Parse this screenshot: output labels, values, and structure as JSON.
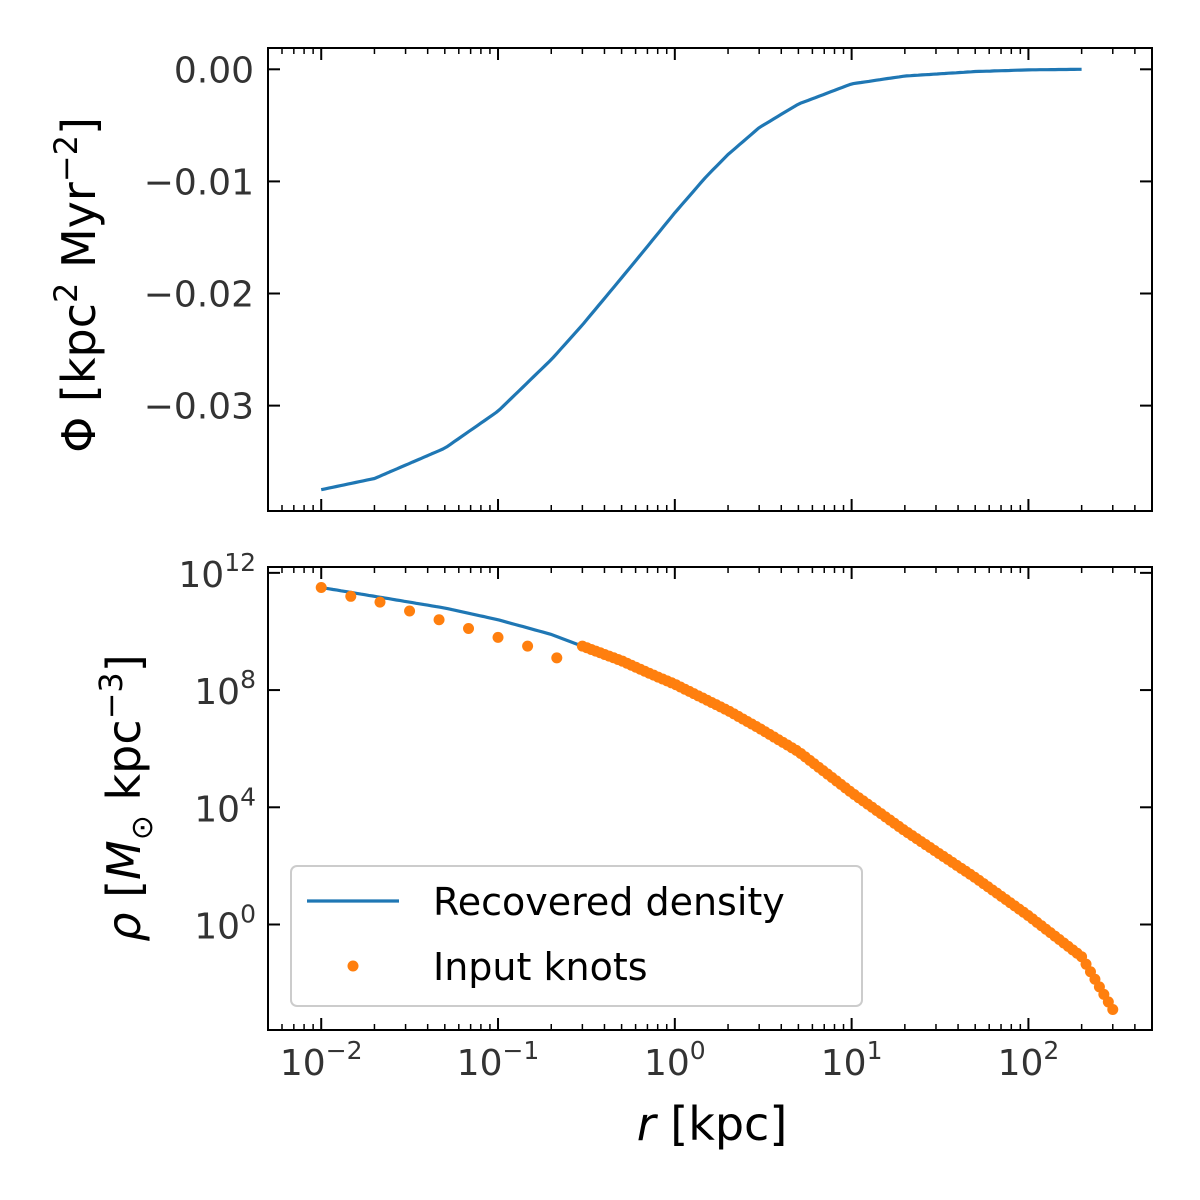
{
  "chart_data": [
    {
      "type": "line",
      "panel": "top",
      "ylabel": "Φ [kpc² Myr⁻²]",
      "ylabel_parts": {
        "sym": "Φ",
        "unit1": "kpc",
        "exp1": "2",
        "unit2": "Myr",
        "exp2": "−2"
      },
      "xscale": "log",
      "xlim": [
        0.005,
        500
      ],
      "ylim": [
        -0.0394,
        0.0019
      ],
      "yticks": [
        0.0,
        -0.01,
        -0.02,
        -0.03
      ],
      "ytick_labels": [
        "0.00",
        "−0.01",
        "−0.02",
        "−0.03"
      ],
      "series": [
        {
          "color": "#1f77b4",
          "x": [
            0.01,
            0.02,
            0.05,
            0.1,
            0.2,
            0.3,
            0.5,
            0.7,
            1.0,
            1.5,
            2.0,
            3.0,
            5.0,
            10.0,
            20.0,
            50.0,
            100.0,
            200.0
          ],
          "y": [
            -0.0375,
            -0.0365,
            -0.0338,
            -0.0305,
            -0.0259,
            -0.0228,
            -0.0186,
            -0.0158,
            -0.0128,
            -0.0096,
            -0.0076,
            -0.0052,
            -0.0031,
            -0.0013,
            -0.0006,
            -0.0002,
            -5e-05,
            0.0
          ]
        }
      ]
    },
    {
      "type": "line",
      "panel": "bottom",
      "xlabel": "r [kpc]",
      "xlabel_parts": {
        "sym": "r",
        "unit": "[kpc]"
      },
      "ylabel": "ρ [M⊙ kpc⁻³]",
      "ylabel_parts": {
        "sym": "ρ",
        "msym": "M",
        "msub": "⊙",
        "unit": "kpc",
        "exp": "−3"
      },
      "xscale": "log",
      "yscale": "log",
      "xlim": [
        0.005,
        500
      ],
      "ylim_log10": [
        -3.6,
        12.2
      ],
      "xticks": [
        0.01,
        0.1,
        1,
        10,
        100
      ],
      "xtick_labels": [
        {
          "base": "10",
          "exp": "−2"
        },
        {
          "base": "10",
          "exp": "−1"
        },
        {
          "base": "10",
          "exp": "0"
        },
        {
          "base": "10",
          "exp": "1"
        },
        {
          "base": "10",
          "exp": "2"
        }
      ],
      "yticks_log10": [
        12,
        8,
        4,
        0
      ],
      "ytick_labels": [
        {
          "base": "10",
          "exp": "12"
        },
        {
          "base": "10",
          "exp": "8"
        },
        {
          "base": "10",
          "exp": "4"
        },
        {
          "base": "10",
          "exp": "0"
        }
      ],
      "legend_position": "lower-left",
      "series": [
        {
          "name": "Recovered density",
          "kind": "line",
          "color": "#1f77b4",
          "x": [
            0.01,
            0.02,
            0.05,
            0.1,
            0.2,
            0.3,
            0.5,
            0.7,
            1.0,
            2.0,
            3.0,
            5.0,
            10.0,
            20.0,
            50.0,
            100.0,
            200.0,
            300.0
          ],
          "log10_y": [
            11.5,
            11.2,
            10.8,
            10.4,
            9.9,
            9.5,
            9.0,
            8.6,
            8.2,
            7.3,
            6.7,
            5.9,
            4.5,
            3.2,
            1.6,
            0.3,
            -1.1,
            -2.9
          ]
        },
        {
          "name": "Input knots",
          "kind": "markers",
          "color": "#ff7f0e",
          "x_sparse": [
            0.01,
            0.0147,
            0.0215,
            0.0316,
            0.0464,
            0.0681,
            0.1,
            0.147,
            0.215
          ],
          "log10_y_sparse": [
            11.5,
            11.2,
            11.0,
            10.7,
            10.4,
            10.1,
            9.8,
            9.5,
            9.1
          ],
          "dense_x_range": [
            0.3,
            300
          ],
          "dense_count": 120
        }
      ]
    }
  ]
}
